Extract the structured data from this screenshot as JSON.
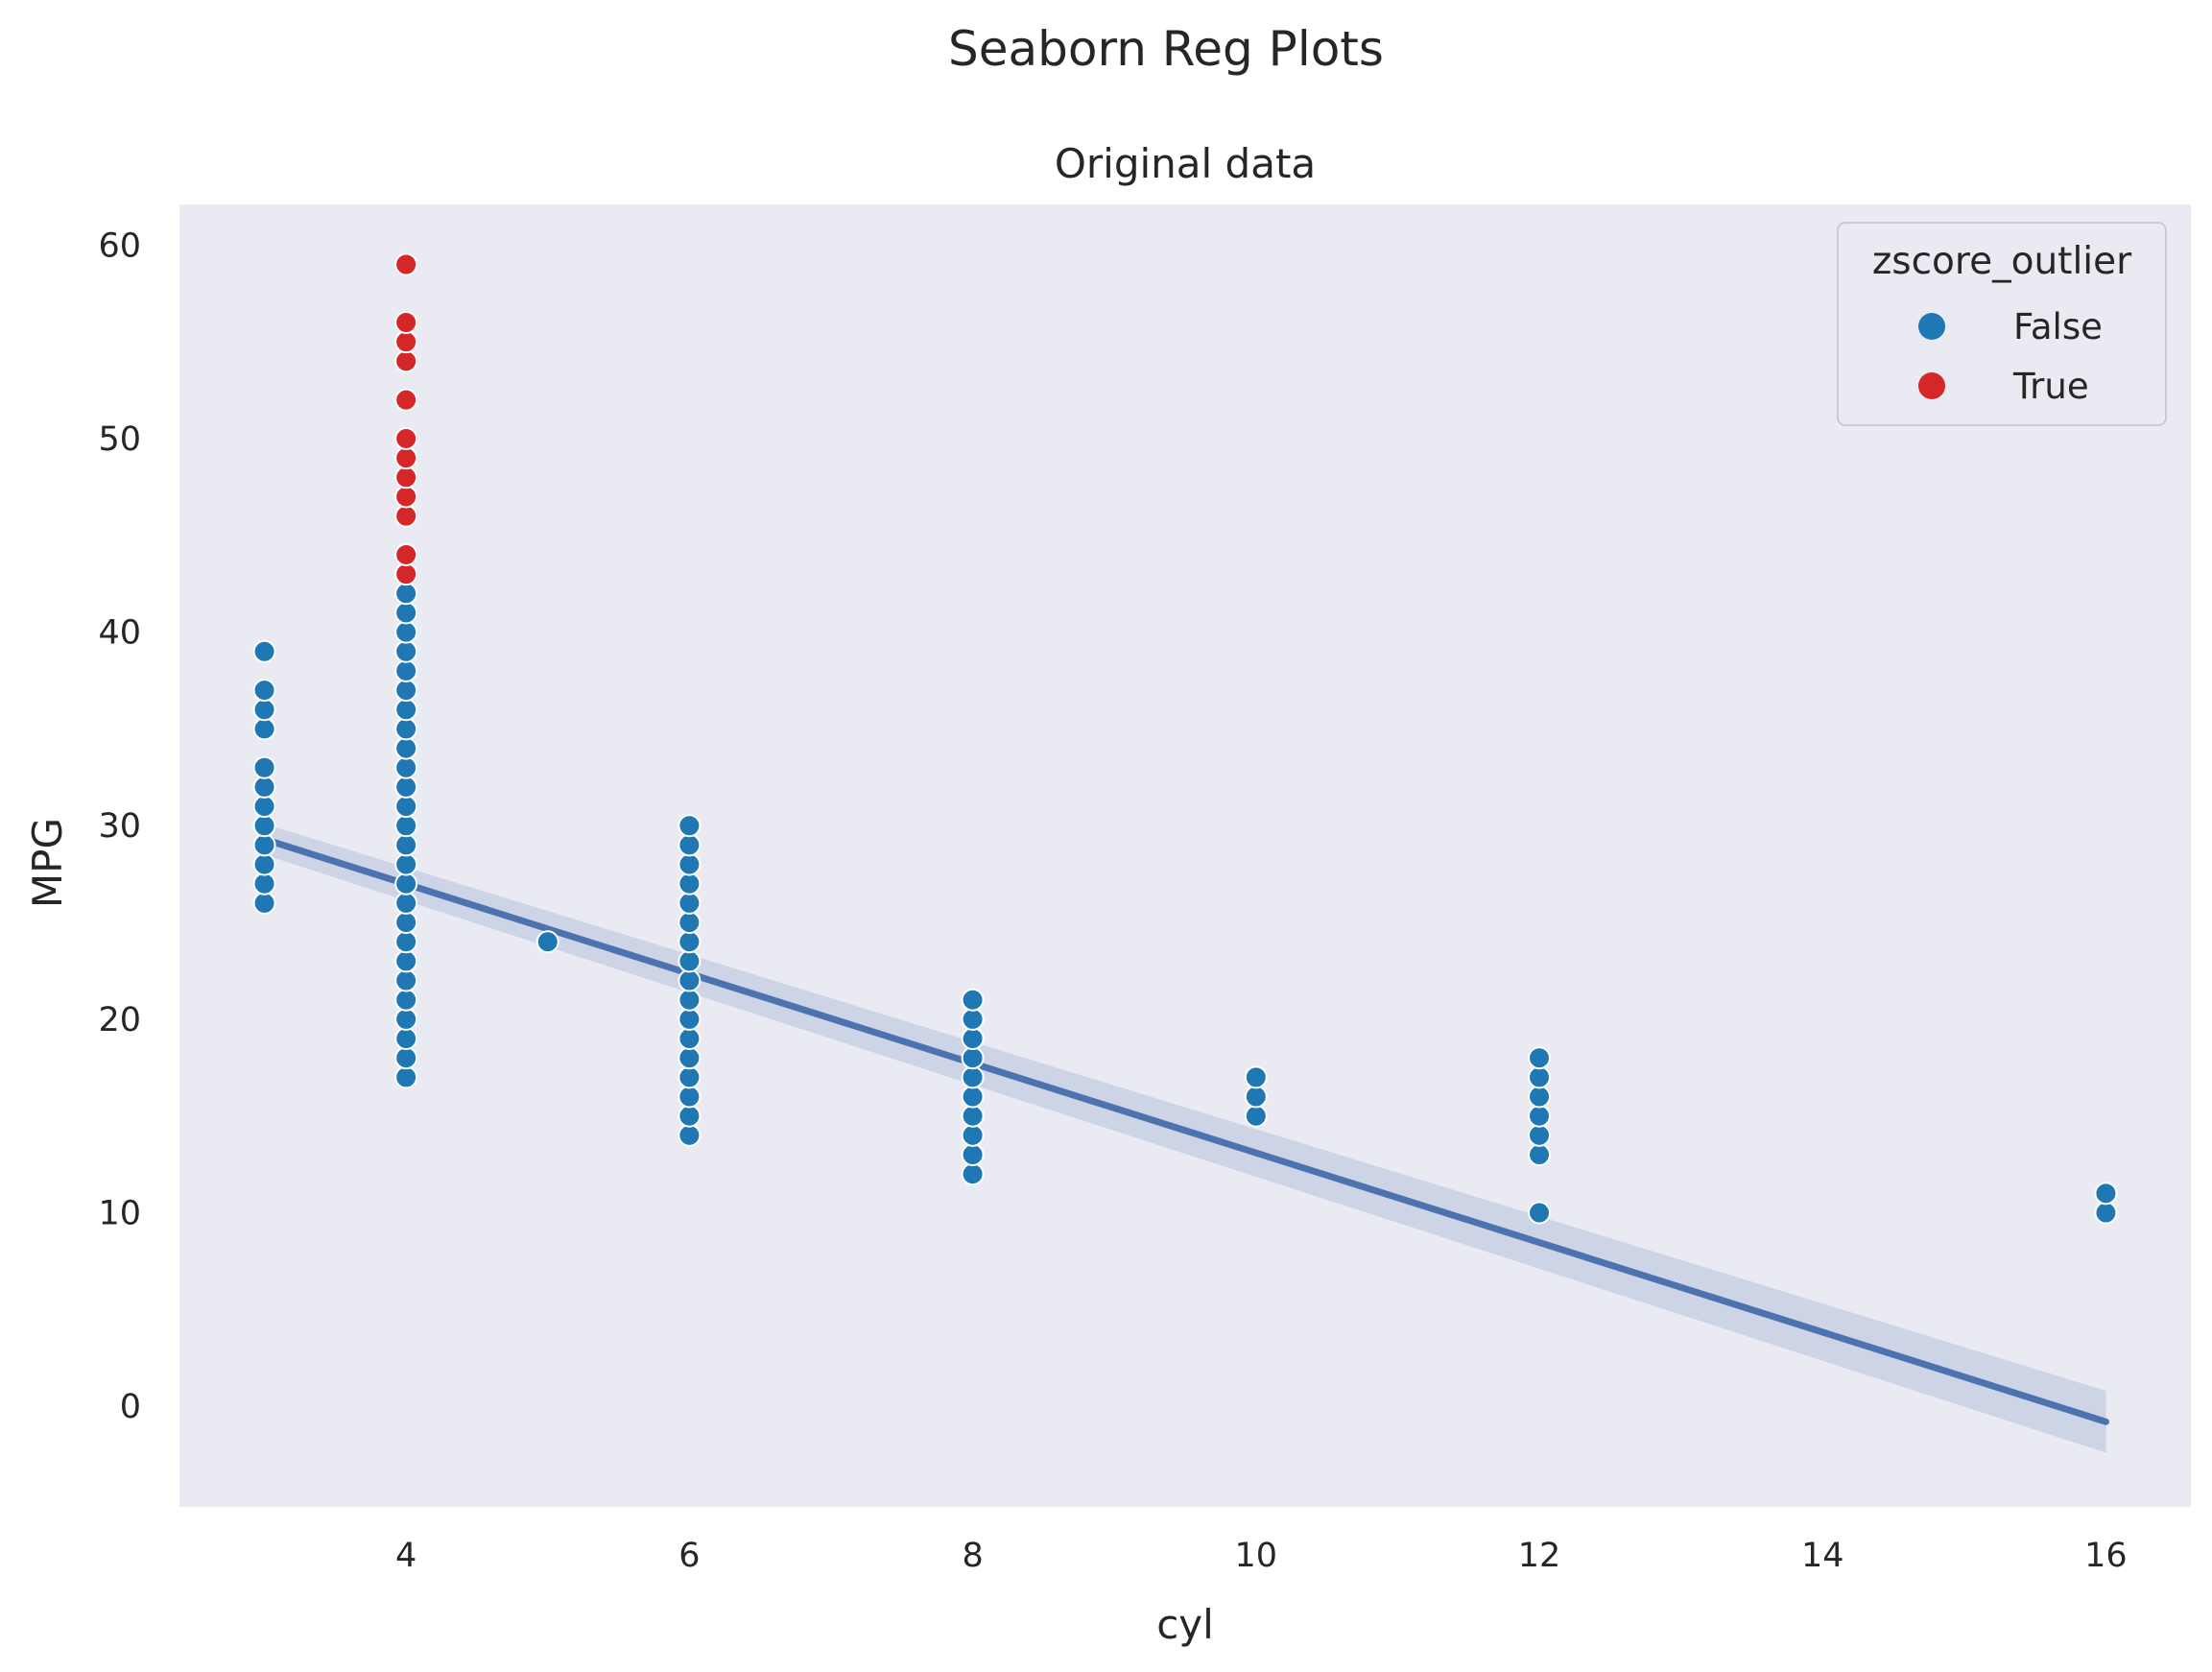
{
  "chart_data": {
    "type": "scatter",
    "suptitle": "Seaborn Reg Plots",
    "title": "Original data",
    "xlabel": "cyl",
    "ylabel": "MPG",
    "xlim": [
      2.4,
      16.6
    ],
    "ylim": [
      -5.2,
      62.1
    ],
    "x_ticks": [
      4,
      6,
      8,
      10,
      12,
      14,
      16
    ],
    "y_ticks": [
      0,
      10,
      20,
      30,
      40,
      50,
      60
    ],
    "grid": false,
    "background_color": "#eaeaf2",
    "legend": {
      "title": "zscore_outlier",
      "placement": "top-right",
      "entries": [
        {
          "label": "False",
          "color": "#1f77b4"
        },
        {
          "label": "True",
          "color": "#d62728"
        }
      ]
    },
    "series": [
      {
        "name": "False",
        "color": "#1f77b4",
        "points": [
          [
            3,
            26
          ],
          [
            3,
            27
          ],
          [
            3,
            28
          ],
          [
            3,
            29
          ],
          [
            3,
            30
          ],
          [
            3,
            31
          ],
          [
            3,
            32
          ],
          [
            3,
            33
          ],
          [
            3,
            35
          ],
          [
            3,
            36
          ],
          [
            3,
            37
          ],
          [
            3,
            39
          ],
          [
            4,
            17
          ],
          [
            4,
            18
          ],
          [
            4,
            19
          ],
          [
            4,
            20
          ],
          [
            4,
            21
          ],
          [
            4,
            22
          ],
          [
            4,
            23
          ],
          [
            4,
            24
          ],
          [
            4,
            25
          ],
          [
            4,
            26
          ],
          [
            4,
            27
          ],
          [
            4,
            28
          ],
          [
            4,
            29
          ],
          [
            4,
            30
          ],
          [
            4,
            31
          ],
          [
            4,
            32
          ],
          [
            4,
            33
          ],
          [
            4,
            34
          ],
          [
            4,
            35
          ],
          [
            4,
            36
          ],
          [
            4,
            37
          ],
          [
            4,
            38
          ],
          [
            4,
            39
          ],
          [
            4,
            40
          ],
          [
            4,
            41
          ],
          [
            4,
            42
          ],
          [
            5,
            24
          ],
          [
            6,
            14
          ],
          [
            6,
            15
          ],
          [
            6,
            16
          ],
          [
            6,
            17
          ],
          [
            6,
            18
          ],
          [
            6,
            19
          ],
          [
            6,
            20
          ],
          [
            6,
            21
          ],
          [
            6,
            22
          ],
          [
            6,
            23
          ],
          [
            6,
            24
          ],
          [
            6,
            25
          ],
          [
            6,
            26
          ],
          [
            6,
            27
          ],
          [
            6,
            28
          ],
          [
            6,
            29
          ],
          [
            6,
            30
          ],
          [
            8,
            12
          ],
          [
            8,
            13
          ],
          [
            8,
            14
          ],
          [
            8,
            15
          ],
          [
            8,
            16
          ],
          [
            8,
            17
          ],
          [
            8,
            18
          ],
          [
            8,
            19
          ],
          [
            8,
            20
          ],
          [
            8,
            21
          ],
          [
            10,
            15
          ],
          [
            10,
            16
          ],
          [
            10,
            17
          ],
          [
            12,
            10
          ],
          [
            12,
            13
          ],
          [
            12,
            14
          ],
          [
            12,
            15
          ],
          [
            12,
            16
          ],
          [
            12,
            17
          ],
          [
            12,
            18
          ],
          [
            16,
            10
          ],
          [
            16,
            11
          ]
        ]
      },
      {
        "name": "True",
        "color": "#d62728",
        "points": [
          [
            4,
            43
          ],
          [
            4,
            44
          ],
          [
            4,
            46
          ],
          [
            4,
            47
          ],
          [
            4,
            48
          ],
          [
            4,
            49
          ],
          [
            4,
            50
          ],
          [
            4,
            52
          ],
          [
            4,
            54
          ],
          [
            4,
            55
          ],
          [
            4,
            56
          ],
          [
            4,
            59
          ]
        ]
      }
    ],
    "regression": {
      "color": "#4c72b0",
      "x_range": [
        3,
        16
      ],
      "y_start": 29.3,
      "y_end": -0.8,
      "ci_halfwidth_start": 0.8,
      "ci_halfwidth_end": 1.6
    }
  }
}
